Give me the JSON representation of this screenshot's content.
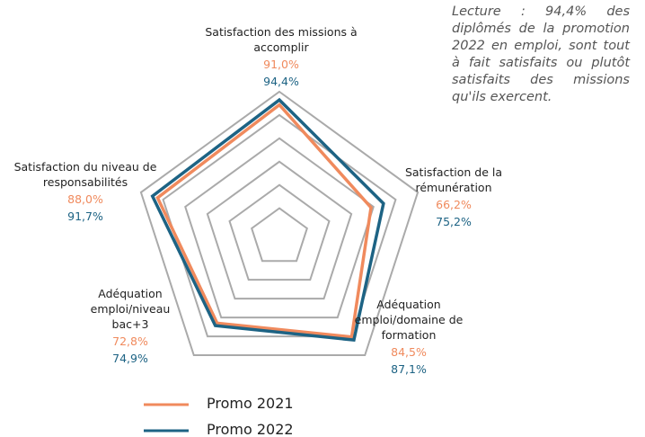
{
  "chart_data": {
    "type": "radar",
    "categories": [
      "Satisfaction des missions à accomplir",
      "Satisfaction de la rémunération",
      "Adéquation emploi/domaine de formation",
      "Adéquation emploi/niveau bac+3",
      "Satisfaction du niveau de responsabilités"
    ],
    "series": [
      {
        "name": "Promo 2021",
        "color": "#f08a5d",
        "values": [
          91.0,
          66.2,
          84.5,
          72.8,
          88.0
        ],
        "value_labels": [
          "91,0%",
          "66,2%",
          "84,5%",
          "72,8%",
          "88,0%"
        ]
      },
      {
        "name": "Promo 2022",
        "color": "#1d6384",
        "values": [
          94.4,
          75.2,
          87.1,
          74.9,
          91.7
        ],
        "value_labels": [
          "94,4%",
          "75,2%",
          "87,1%",
          "74,9%",
          "91,7%"
        ]
      }
    ],
    "rlim": [
      0,
      100
    ],
    "rticks": [
      20,
      36,
      52,
      68,
      84,
      100
    ],
    "annotation": "Lecture : 94,4% des diplômés de la promotion 2022 en emploi, sont tout à fait satisfaits ou plutôt satisfaits des missions qu'ils exercent."
  }
}
